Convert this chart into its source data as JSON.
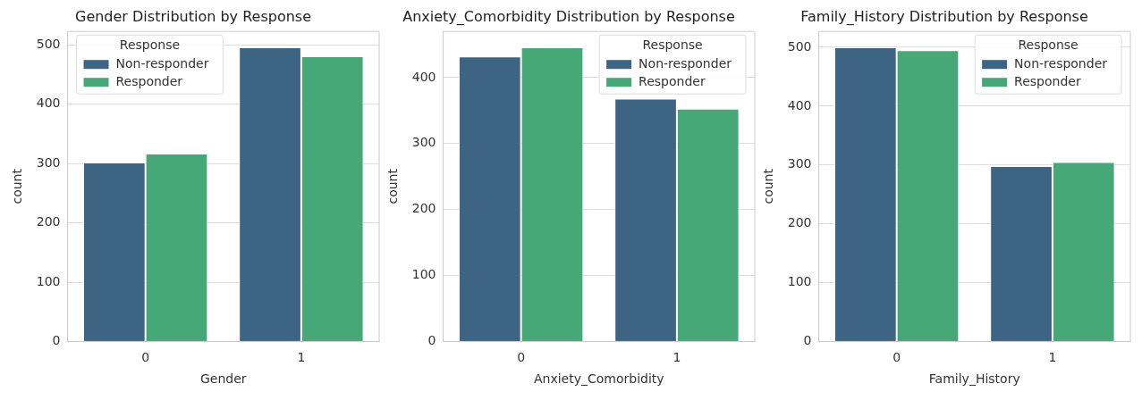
{
  "chart_data": [
    {
      "type": "bar",
      "title": "Gender Distribution by Response",
      "xlabel": "Gender",
      "ylabel": "count",
      "categories": [
        "0",
        "1"
      ],
      "series": [
        {
          "name": "Non-responder",
          "color": "#3e6483",
          "values": [
            302,
            496
          ]
        },
        {
          "name": "Responder",
          "color": "#46a877",
          "values": [
            317,
            481
          ]
        }
      ],
      "ylim": [
        0,
        523
      ],
      "yticks": [
        0,
        100,
        200,
        300,
        400,
        500
      ],
      "grid": "y",
      "legend": "top left",
      "legend_title": "Response"
    },
    {
      "type": "bar",
      "title": "Anxiety_Comorbidity Distribution by Response",
      "xlabel": "Anxiety_Comorbidity",
      "ylabel": "count",
      "categories": [
        "0",
        "1"
      ],
      "series": [
        {
          "name": "Non-responder",
          "color": "#3e6483",
          "values": [
            432,
            368
          ]
        },
        {
          "name": "Responder",
          "color": "#46a877",
          "values": [
            446,
            353
          ]
        }
      ],
      "ylim": [
        0,
        470
      ],
      "yticks": [
        0,
        100,
        200,
        300,
        400
      ],
      "grid": "y",
      "legend": "top right",
      "legend_title": "Response"
    },
    {
      "type": "bar",
      "title": "Family_History Distribution by Response",
      "xlabel": "Family_History",
      "ylabel": "count",
      "categories": [
        "0",
        "1"
      ],
      "series": [
        {
          "name": "Non-responder",
          "color": "#3e6483",
          "values": [
            500,
            298
          ]
        },
        {
          "name": "Responder",
          "color": "#46a877",
          "values": [
            495,
            305
          ]
        }
      ],
      "ylim": [
        0,
        527
      ],
      "yticks": [
        0,
        100,
        200,
        300,
        400,
        500
      ],
      "grid": "y",
      "legend": "top right",
      "legend_title": "Response"
    }
  ]
}
